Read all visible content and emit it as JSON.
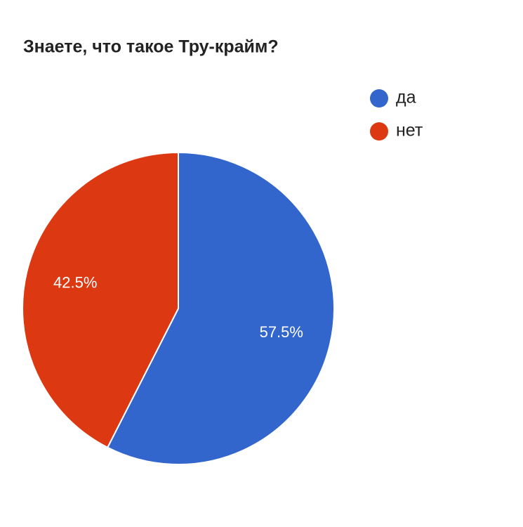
{
  "chart_data": {
    "type": "pie",
    "title": "Знаете, что такое Тру-крайм?",
    "categories": [
      "да",
      "нет"
    ],
    "values": [
      57.5,
      42.5
    ],
    "value_labels": [
      "57.5%",
      "42.5%"
    ],
    "colors": [
      "#3366cc",
      "#dc3912"
    ],
    "legend": "right"
  }
}
